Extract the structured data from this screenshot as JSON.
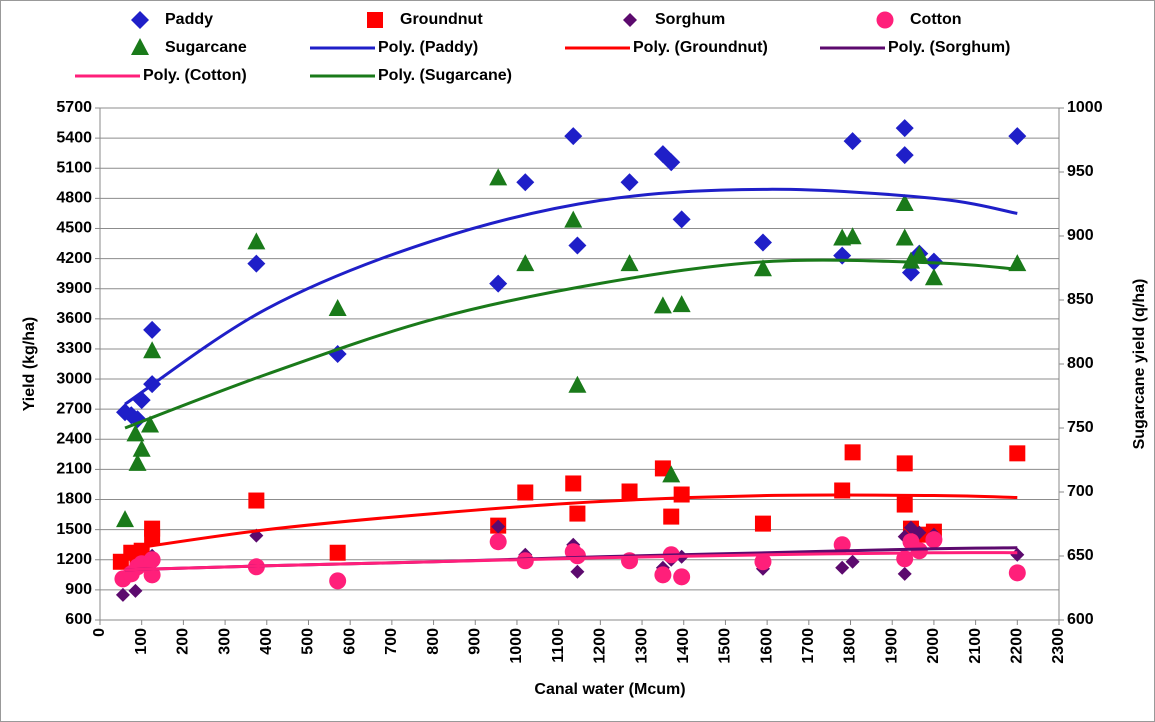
{
  "chart_data": {
    "type": "scatter",
    "x_label": "Canal water (Mcum)",
    "y_label": "Yield (kg/ha)",
    "y2_label": "Sugarcane yield (q/ha)",
    "xlim": [
      0,
      2300
    ],
    "xticks": [
      0,
      100,
      200,
      300,
      400,
      500,
      600,
      700,
      800,
      900,
      1000,
      1100,
      1200,
      1300,
      1400,
      1500,
      1600,
      1700,
      1800,
      1900,
      2000,
      2100,
      2200,
      2300
    ],
    "ylim": [
      600,
      5700
    ],
    "yticks": [
      600,
      900,
      1200,
      1500,
      1800,
      2100,
      2400,
      2700,
      3000,
      3300,
      3600,
      3900,
      4200,
      4500,
      4800,
      5100,
      5400,
      5700
    ],
    "y2lim": [
      600,
      1000
    ],
    "y2ticks": [
      600,
      650,
      700,
      750,
      800,
      850,
      900,
      950,
      1000
    ],
    "grid": true,
    "legend": "top",
    "series": [
      {
        "name": "Paddy",
        "color": "#1f1fc8",
        "marker": "diamond",
        "x": [
          60,
          75,
          90,
          100,
          125,
          125,
          375,
          570,
          955,
          1020,
          1135,
          1145,
          1270,
          1350,
          1370,
          1395,
          1590,
          1780,
          1805,
          1930,
          1930,
          1945,
          1965,
          2000,
          2200
        ],
        "values": [
          2670,
          2640,
          2600,
          2790,
          2950,
          3490,
          4150,
          3250,
          3950,
          4960,
          5420,
          4330,
          4960,
          5240,
          5160,
          4590,
          4360,
          4230,
          5370,
          5500,
          5230,
          4060,
          4250,
          4170,
          5420
        ]
      },
      {
        "name": "Groundnut",
        "color": "#ff0000",
        "marker": "square",
        "x": [
          50,
          75,
          90,
          100,
          125,
          125,
          375,
          570,
          955,
          1020,
          1135,
          1145,
          1270,
          1350,
          1370,
          1395,
          1590,
          1780,
          1805,
          1930,
          1930,
          1945,
          1965,
          2000,
          2200
        ],
        "values": [
          1180,
          1270,
          1200,
          1290,
          1420,
          1510,
          1790,
          1270,
          1540,
          1870,
          1960,
          1660,
          1880,
          2110,
          1630,
          1850,
          1560,
          1890,
          2270,
          2160,
          1750,
          1510,
          1450,
          1480,
          2260
        ]
      },
      {
        "name": "Sorghum",
        "color": "#5c0a6e",
        "marker": "smalldiamond",
        "x": [
          55,
          85,
          90,
          100,
          125,
          375,
          955,
          1020,
          1135,
          1145,
          1350,
          1370,
          1395,
          1590,
          1780,
          1805,
          1930,
          1930,
          1945,
          1965,
          2000,
          2200
        ],
        "values": [
          850,
          890,
          1100,
          1150,
          1240,
          1440,
          1530,
          1250,
          1350,
          1080,
          1120,
          1200,
          1230,
          1110,
          1120,
          1180,
          1060,
          1430,
          1520,
          1470,
          1450,
          1250
        ]
      },
      {
        "name": "Cotton",
        "color": "#ff1f7a",
        "marker": "circle",
        "x": [
          55,
          75,
          90,
          100,
          125,
          125,
          375,
          570,
          955,
          1020,
          1135,
          1145,
          1270,
          1350,
          1370,
          1395,
          1590,
          1780,
          1930,
          1945,
          1965,
          2000,
          2200
        ],
        "values": [
          1010,
          1060,
          1130,
          1160,
          1050,
          1200,
          1130,
          990,
          1380,
          1190,
          1280,
          1240,
          1190,
          1050,
          1250,
          1030,
          1180,
          1350,
          1210,
          1380,
          1290,
          1400,
          1070
        ]
      },
      {
        "name": "Sugarcane",
        "color": "#1a7a1a",
        "marker": "triangle",
        "axis": "y2",
        "x": [
          60,
          85,
          90,
          100,
          120,
          125,
          375,
          570,
          955,
          1020,
          1135,
          1145,
          1270,
          1350,
          1370,
          1395,
          1590,
          1780,
          1805,
          1930,
          1930,
          1945,
          1965,
          2000,
          2200
        ],
        "values": [
          678,
          745,
          722,
          733,
          752,
          810,
          895,
          843,
          945,
          878,
          912,
          783,
          878,
          845,
          713,
          846,
          874,
          898,
          899,
          925,
          898,
          880,
          885,
          867,
          878
        ]
      },
      {
        "name": "Poly. (Paddy)",
        "color": "#1f1fc8",
        "marker": "line",
        "x": [
          60,
          400,
          800,
          1200,
          1600,
          2000,
          2200
        ],
        "values": [
          2750,
          3700,
          4380,
          4780,
          4890,
          4800,
          4650
        ]
      },
      {
        "name": "Poly. (Groundnut)",
        "color": "#ff0000",
        "marker": "line",
        "x": [
          60,
          400,
          800,
          1200,
          1600,
          2000,
          2200
        ],
        "values": [
          1300,
          1500,
          1660,
          1780,
          1840,
          1840,
          1820
        ]
      },
      {
        "name": "Poly. (Sorghum)",
        "color": "#5c0a6e",
        "marker": "line",
        "x": [
          60,
          400,
          800,
          1200,
          1600,
          2000,
          2200
        ],
        "values": [
          1100,
          1140,
          1180,
          1230,
          1270,
          1310,
          1320
        ]
      },
      {
        "name": "Poly. (Cotton)",
        "color": "#ff1f7a",
        "marker": "line",
        "x": [
          60,
          400,
          800,
          1200,
          1600,
          2000,
          2200
        ],
        "values": [
          1100,
          1140,
          1180,
          1220,
          1250,
          1270,
          1270
        ]
      },
      {
        "name": "Poly. (Sugarcane)",
        "color": "#1a7a1a",
        "marker": "line",
        "axis": "y2",
        "x": [
          60,
          400,
          800,
          1200,
          1600,
          2000,
          2200
        ],
        "values": [
          750,
          792,
          835,
          863,
          880,
          879,
          874
        ]
      }
    ]
  }
}
